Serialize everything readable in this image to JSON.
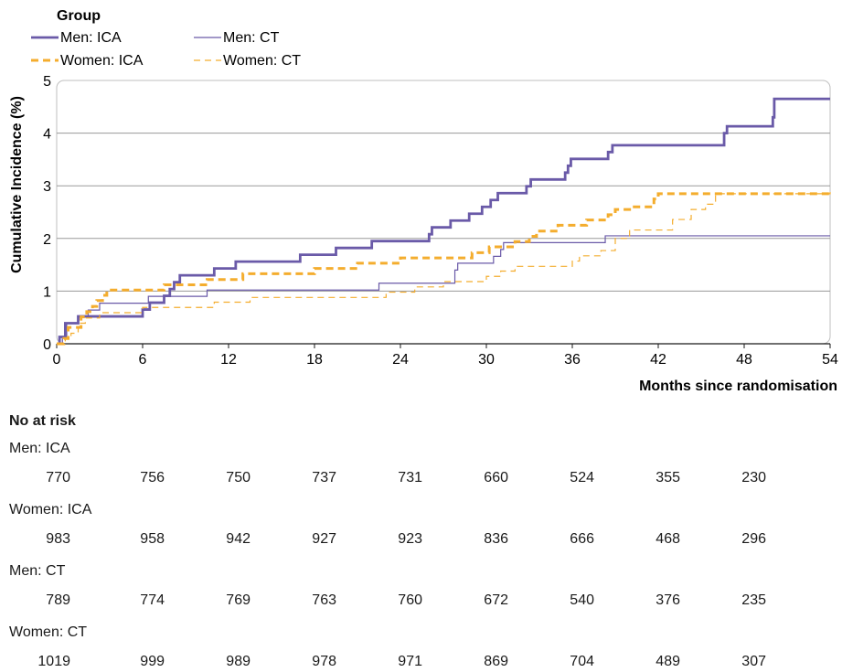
{
  "chart_data": {
    "type": "line",
    "legend_title": "Group",
    "legend_placement": "top-left",
    "xlabel": "Months since randomisation",
    "ylabel": "Cumulative Incidence (%)",
    "xlim": [
      0,
      54
    ],
    "ylim": [
      0,
      5
    ],
    "xticks": [
      "0",
      "6",
      "12",
      "18",
      "24",
      "30",
      "36",
      "42",
      "48",
      "54"
    ],
    "yticks": [
      "0",
      "1",
      "2",
      "3",
      "4",
      "5"
    ],
    "grid": "horizontal",
    "series": [
      {
        "name": "Men: ICA",
        "color": "#6a5aa8",
        "style": "solid-thick",
        "points": [
          [
            0,
            0
          ],
          [
            0.2,
            0.13
          ],
          [
            0.6,
            0.39
          ],
          [
            1.5,
            0.52
          ],
          [
            5.8,
            0.52
          ],
          [
            6,
            0.65
          ],
          [
            6.5,
            0.78
          ],
          [
            7.5,
            0.91
          ],
          [
            7.9,
            1.04
          ],
          [
            8.2,
            1.17
          ],
          [
            8.6,
            1.3
          ],
          [
            11,
            1.43
          ],
          [
            12.5,
            1.56
          ],
          [
            17,
            1.69
          ],
          [
            19.5,
            1.82
          ],
          [
            22,
            1.95
          ],
          [
            26,
            2.08
          ],
          [
            26.2,
            2.21
          ],
          [
            27.5,
            2.34
          ],
          [
            28.8,
            2.47
          ],
          [
            29.7,
            2.6
          ],
          [
            30.3,
            2.73
          ],
          [
            30.8,
            2.86
          ],
          [
            32.8,
            2.99
          ],
          [
            33.1,
            3.12
          ],
          [
            35.5,
            3.25
          ],
          [
            35.7,
            3.38
          ],
          [
            35.9,
            3.51
          ],
          [
            38.5,
            3.64
          ],
          [
            38.8,
            3.77
          ],
          [
            46.6,
            4.0
          ],
          [
            46.8,
            4.13
          ],
          [
            50,
            4.3
          ],
          [
            50.1,
            4.65
          ],
          [
            54,
            4.65
          ]
        ]
      },
      {
        "name": "Men: CT",
        "color": "#6a5aa8",
        "style": "solid-thin",
        "points": [
          [
            0,
            0
          ],
          [
            0.4,
            0.13
          ],
          [
            0.7,
            0.39
          ],
          [
            1.5,
            0.51
          ],
          [
            2.2,
            0.64
          ],
          [
            3,
            0.77
          ],
          [
            6.2,
            0.77
          ],
          [
            6.4,
            0.9
          ],
          [
            10.5,
            1.02
          ],
          [
            22,
            1.02
          ],
          [
            22.5,
            1.15
          ],
          [
            27.5,
            1.15
          ],
          [
            27.8,
            1.4
          ],
          [
            28,
            1.53
          ],
          [
            30.5,
            1.66
          ],
          [
            31,
            1.79
          ],
          [
            31.2,
            1.92
          ],
          [
            38,
            1.92
          ],
          [
            38.3,
            2.05
          ],
          [
            54,
            2.05
          ]
        ]
      },
      {
        "name": "Women: ICA",
        "color": "#f4ad2e",
        "style": "dashed-thick",
        "points": [
          [
            0,
            0
          ],
          [
            0.5,
            0.1
          ],
          [
            0.8,
            0.31
          ],
          [
            1.7,
            0.51
          ],
          [
            2.1,
            0.61
          ],
          [
            2.5,
            0.71
          ],
          [
            2.8,
            0.82
          ],
          [
            3.2,
            0.92
          ],
          [
            3.5,
            1.02
          ],
          [
            7,
            1.02
          ],
          [
            7.5,
            1.12
          ],
          [
            10.5,
            1.22
          ],
          [
            13,
            1.33
          ],
          [
            18,
            1.43
          ],
          [
            21,
            1.53
          ],
          [
            24,
            1.63
          ],
          [
            29,
            1.73
          ],
          [
            30.2,
            1.84
          ],
          [
            32,
            1.94
          ],
          [
            33,
            2.04
          ],
          [
            33.5,
            2.14
          ],
          [
            35,
            2.25
          ],
          [
            37,
            2.35
          ],
          [
            38.5,
            2.45
          ],
          [
            39,
            2.55
          ],
          [
            40,
            2.6
          ],
          [
            41.7,
            2.75
          ],
          [
            42,
            2.85
          ],
          [
            54,
            2.85
          ]
        ]
      },
      {
        "name": "Women: CT",
        "color": "#f4ad2e",
        "style": "dashed-thin",
        "points": [
          [
            0,
            0
          ],
          [
            0.6,
            0.1
          ],
          [
            1,
            0.2
          ],
          [
            1.5,
            0.39
          ],
          [
            2,
            0.49
          ],
          [
            3,
            0.59
          ],
          [
            6,
            0.69
          ],
          [
            11,
            0.79
          ],
          [
            13.5,
            0.88
          ],
          [
            23,
            0.98
          ],
          [
            25,
            1.08
          ],
          [
            27,
            1.18
          ],
          [
            30,
            1.28
          ],
          [
            31,
            1.38
          ],
          [
            32,
            1.47
          ],
          [
            36,
            1.57
          ],
          [
            36.5,
            1.67
          ],
          [
            38,
            1.77
          ],
          [
            39,
            2.0
          ],
          [
            40,
            2.16
          ],
          [
            43,
            2.36
          ],
          [
            44.3,
            2.55
          ],
          [
            45.3,
            2.65
          ],
          [
            46,
            2.85
          ],
          [
            54,
            2.88
          ]
        ]
      }
    ]
  },
  "at_risk": {
    "title": "No at risk",
    "groups": [
      {
        "name": "Men: ICA",
        "values": [
          "770",
          "756",
          "750",
          "737",
          "731",
          "660",
          "524",
          "355",
          "230"
        ]
      },
      {
        "name": "Women: ICA",
        "values": [
          "983",
          "958",
          "942",
          "927",
          "923",
          "836",
          "666",
          "468",
          "296"
        ]
      },
      {
        "name": "Men: CT",
        "values": [
          "789",
          "774",
          "769",
          "763",
          "760",
          "672",
          "540",
          "376",
          "235"
        ]
      },
      {
        "name": "Women: CT",
        "values": [
          "1019",
          "999",
          "989",
          "978",
          "971",
          "869",
          "704",
          "489",
          "307"
        ]
      }
    ]
  }
}
